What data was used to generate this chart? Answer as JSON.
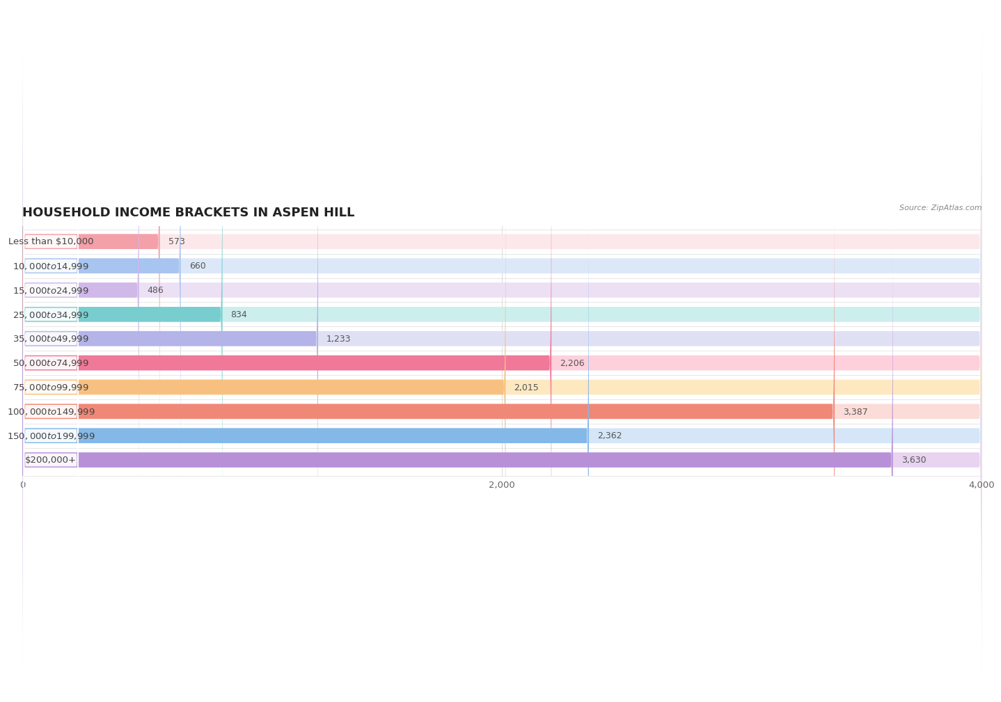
{
  "title": "HOUSEHOLD INCOME BRACKETS IN ASPEN HILL",
  "source": "Source: ZipAtlas.com",
  "categories": [
    "Less than $10,000",
    "$10,000 to $14,999",
    "$15,000 to $24,999",
    "$25,000 to $34,999",
    "$35,000 to $49,999",
    "$50,000 to $74,999",
    "$75,000 to $99,999",
    "$100,000 to $149,999",
    "$150,000 to $199,999",
    "$200,000+"
  ],
  "values": [
    573,
    660,
    486,
    834,
    1233,
    2206,
    2015,
    3387,
    2362,
    3630
  ],
  "bar_colors": [
    "#f4a0a8",
    "#a8c4f0",
    "#d0b8e8",
    "#78cece",
    "#b4b4e8",
    "#f07898",
    "#f8c080",
    "#f08878",
    "#84b8e8",
    "#b890d8"
  ],
  "bar_bg_colors": [
    "#fce8ea",
    "#dce8f8",
    "#ece0f5",
    "#cceeed",
    "#e0e0f5",
    "#fdd0dc",
    "#fde8c0",
    "#fcdcd8",
    "#d4e6f8",
    "#e8d4f0"
  ],
  "xlim": [
    0,
    4000
  ],
  "xticks": [
    0,
    2000,
    4000
  ],
  "background_color": "#ffffff",
  "title_fontsize": 13,
  "label_fontsize": 9.5,
  "value_fontsize": 9.0
}
